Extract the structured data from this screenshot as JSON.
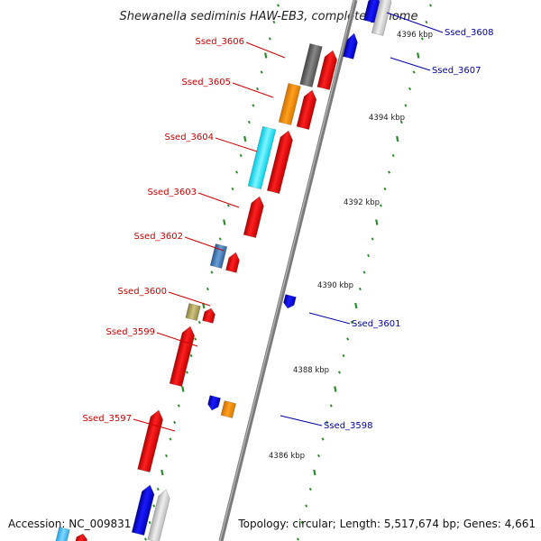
{
  "title": "Shewanella sediminis HAW-EB3, complete genome",
  "footer": {
    "accession": "Accession: NC_009831",
    "topology": "Topology: circular; Length: 5,517,674 bp; Genes: 4,661"
  },
  "colors": {
    "forward_label": "#cc0000",
    "reverse_label": "#0000aa",
    "forward_gene": "#ff0000",
    "reverse_gene": "#0000ee",
    "backbone": "#888888",
    "tick": "#2e8b2e"
  },
  "scale_ticks": [
    "4386 kbp",
    "4388 kbp",
    "4390 kbp",
    "4392 kbp",
    "4394 kbp",
    "4396 kbp"
  ],
  "forward_labels": [
    "Ssed_3606",
    "Ssed_3605",
    "Ssed_3604",
    "Ssed_3603",
    "Ssed_3602",
    "Ssed_3600",
    "Ssed_3599",
    "Ssed_3597"
  ],
  "reverse_labels": [
    "Ssed_3608",
    "Ssed_3607",
    "Ssed_3601",
    "Ssed_3598"
  ]
}
